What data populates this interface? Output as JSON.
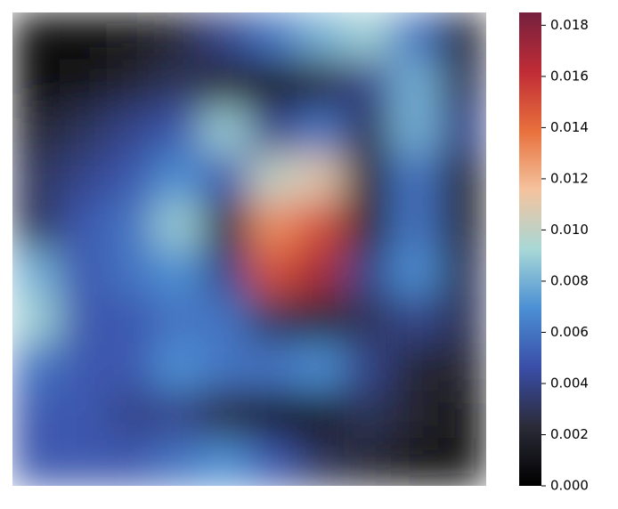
{
  "chart_data": {
    "type": "contourf",
    "z": [
      [
        0.0005,
        0.0005,
        0.001,
        0.002,
        0.004,
        0.006,
        0.008,
        0.009,
        0.006,
        0.002
      ],
      [
        0.0005,
        0.001,
        0.002,
        0.003,
        0.002,
        0.001,
        0.002,
        0.004,
        0.008,
        0.003
      ],
      [
        0.002,
        0.003,
        0.004,
        0.005,
        0.009,
        0.004,
        0.006,
        0.003,
        0.008,
        0.004
      ],
      [
        0.003,
        0.004,
        0.005,
        0.007,
        0.005,
        0.01,
        0.011,
        0.002,
        0.006,
        0.002
      ],
      [
        0.003,
        0.005,
        0.006,
        0.009,
        0.002,
        0.013,
        0.015,
        0.002,
        0.006,
        0.002
      ],
      [
        0.008,
        0.005,
        0.006,
        0.007,
        0.004,
        0.015,
        0.017,
        0.004,
        0.007,
        0.003
      ],
      [
        0.009,
        0.005,
        0.005,
        0.006,
        0.006,
        0.003,
        0.002,
        0.003,
        0.004,
        0.003
      ],
      [
        0.006,
        0.005,
        0.005,
        0.007,
        0.006,
        0.006,
        0.007,
        0.004,
        0.002,
        0.002
      ],
      [
        0.005,
        0.005,
        0.004,
        0.004,
        0.002,
        0.001,
        0.001,
        0.003,
        0.002,
        0.001
      ],
      [
        0.005,
        0.005,
        0.005,
        0.006,
        0.007,
        0.005,
        0.003,
        0.002,
        0.001,
        0.001
      ]
    ],
    "vlim": [
      0,
      0.0185
    ],
    "colorbar_ticks": [
      {
        "value": 0,
        "label": "0.000"
      },
      {
        "value": 0.002,
        "label": "0.002"
      },
      {
        "value": 0.004,
        "label": "0.004"
      },
      {
        "value": 0.006,
        "label": "0.006"
      },
      {
        "value": 0.008,
        "label": "0.008"
      },
      {
        "value": 0.01,
        "label": "0.010"
      },
      {
        "value": 0.012,
        "label": "0.012"
      },
      {
        "value": 0.014,
        "label": "0.014"
      },
      {
        "value": 0.016,
        "label": "0.016"
      },
      {
        "value": 0.018,
        "label": "0.018"
      }
    ],
    "colormap": [
      "#000000",
      "#2b2b38",
      "#3a4ea8",
      "#4b8fd4",
      "#a8d8d6",
      "#f4c39e",
      "#e8703c",
      "#c02c36",
      "#75203e"
    ]
  }
}
